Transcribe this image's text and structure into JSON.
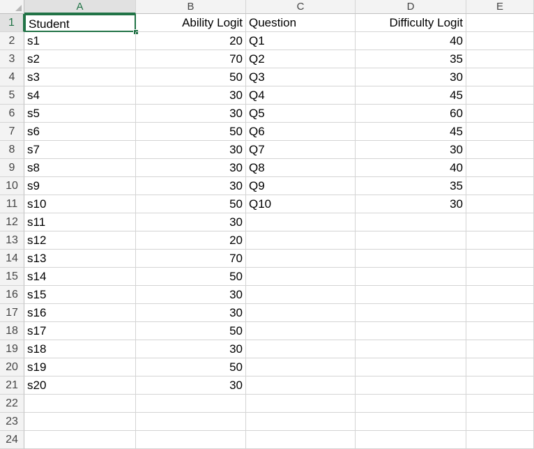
{
  "columns": [
    "A",
    "B",
    "C",
    "D",
    "E"
  ],
  "rows": [
    "1",
    "2",
    "3",
    "4",
    "5",
    "6",
    "7",
    "8",
    "9",
    "10",
    "11",
    "12",
    "13",
    "14",
    "15",
    "16",
    "17",
    "18",
    "19",
    "20",
    "21",
    "22",
    "23",
    "24"
  ],
  "cells": [
    [
      "Student",
      "Ability Logit",
      "Question",
      "Difficulty Logit",
      ""
    ],
    [
      "s1",
      "20",
      "Q1",
      "40",
      ""
    ],
    [
      "s2",
      "70",
      "Q2",
      "35",
      ""
    ],
    [
      "s3",
      "50",
      "Q3",
      "30",
      ""
    ],
    [
      "s4",
      "30",
      "Q4",
      "45",
      ""
    ],
    [
      "s5",
      "30",
      "Q5",
      "60",
      ""
    ],
    [
      "s6",
      "50",
      "Q6",
      "45",
      ""
    ],
    [
      "s7",
      "30",
      "Q7",
      "30",
      ""
    ],
    [
      "s8",
      "30",
      "Q8",
      "40",
      ""
    ],
    [
      "s9",
      "30",
      "Q9",
      "35",
      ""
    ],
    [
      "s10",
      "50",
      "Q10",
      "30",
      ""
    ],
    [
      "s11",
      "30",
      "",
      "",
      ""
    ],
    [
      "s12",
      "20",
      "",
      "",
      ""
    ],
    [
      "s13",
      "70",
      "",
      "",
      ""
    ],
    [
      "s14",
      "50",
      "",
      "",
      ""
    ],
    [
      "s15",
      "30",
      "",
      "",
      ""
    ],
    [
      "s16",
      "30",
      "",
      "",
      ""
    ],
    [
      "s17",
      "50",
      "",
      "",
      ""
    ],
    [
      "s18",
      "30",
      "",
      "",
      ""
    ],
    [
      "s19",
      "50",
      "",
      "",
      ""
    ],
    [
      "s20",
      "30",
      "",
      "",
      ""
    ],
    [
      "",
      "",
      "",
      "",
      ""
    ],
    [
      "",
      "",
      "",
      "",
      ""
    ],
    [
      "",
      "",
      "",
      "",
      ""
    ]
  ],
  "selection": {
    "active_cell": "A1"
  },
  "colors": {
    "selection": "#217346",
    "header_bg": "#f3f3f3",
    "gridline": "#d4d4d4"
  }
}
